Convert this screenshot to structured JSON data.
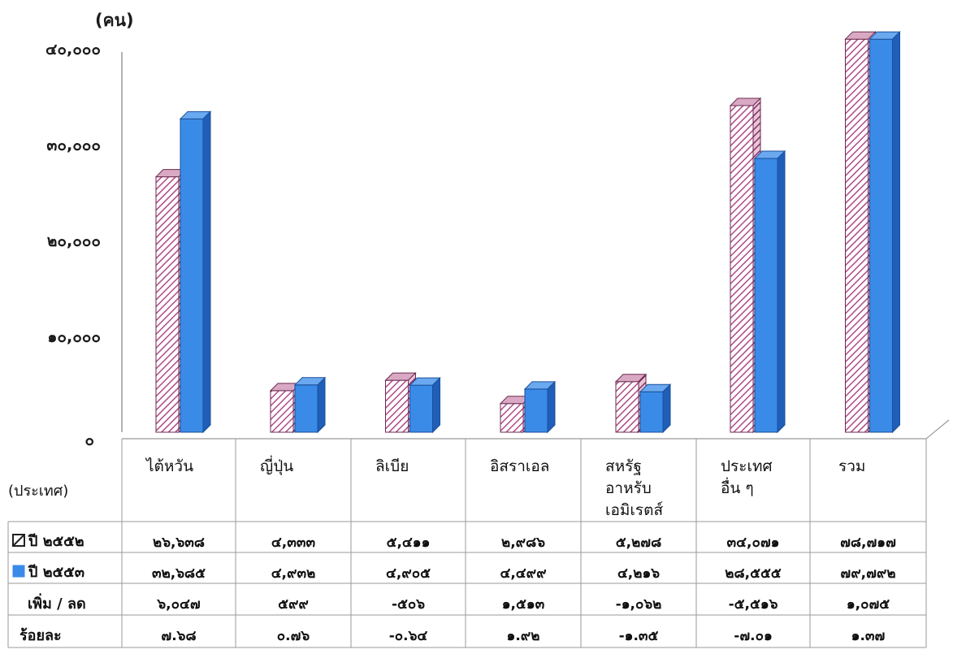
{
  "chart_data": {
    "type": "bar",
    "unit_label": "(คน)",
    "xlabel": "(ประเทศ)",
    "categories": [
      [
        "ไต้หวัน"
      ],
      [
        "ญี่ปุ่น"
      ],
      [
        "ลิเบีย"
      ],
      [
        "อิสราเอล"
      ],
      [
        "สหรัฐ",
        "อาหรับ",
        "เอมิเรตส์"
      ],
      [
        "ประเทศ",
        "อื่น ๆ"
      ],
      [
        "รวม"
      ]
    ],
    "yticks": [
      "๐",
      "๑๐,๐๐๐",
      "๒๐,๐๐๐",
      "๓๐,๐๐๐",
      "๔๐,๐๐๐"
    ],
    "ylim": [
      0,
      40000
    ],
    "series": [
      {
        "name": "ปี ๒๕๕๒",
        "color": "#c98fb0",
        "pattern": "diagonal-hatch",
        "values": [
          26638,
          4333,
          5411,
          2986,
          5278,
          34071,
          78717
        ],
        "value_labels": [
          "๒๖,๖๓๘",
          "๔,๓๓๓",
          "๕,๔๑๑",
          "๒,๙๘๖",
          "๕,๒๗๘",
          "๓๔,๐๗๑",
          "๗๘,๗๑๗"
        ]
      },
      {
        "name": "ปี ๒๕๕๓",
        "color": "#3a8be8",
        "pattern": "solid",
        "values": [
          32685,
          4932,
          4905,
          4499,
          4216,
          28555,
          79792
        ],
        "value_labels": [
          "๓๒,๖๘๕",
          "๔,๙๓๒",
          "๔,๙๐๕",
          "๔,๔๙๙",
          "๔,๒๑๖",
          "๒๘,๕๕๕",
          "๗๙,๗๙๒"
        ]
      }
    ],
    "extra_rows": [
      {
        "label": "เพิ่ม / ลด",
        "values": [
          "๖,๐๔๗",
          "๕๙๙",
          "-๕๐๖",
          "๑,๕๑๓",
          "-๑,๐๖๒",
          "-๕,๕๑๖",
          "๑,๐๗๕"
        ]
      },
      {
        "label": "ร้อยละ",
        "values": [
          "๗.๖๘",
          "๐.๗๖",
          "-๐.๖๔",
          "๑.๙๒",
          "-๑.๓๕",
          "-๗.๐๑",
          "๑.๓๗"
        ]
      }
    ],
    "grid": false,
    "legend": "table-rows"
  }
}
